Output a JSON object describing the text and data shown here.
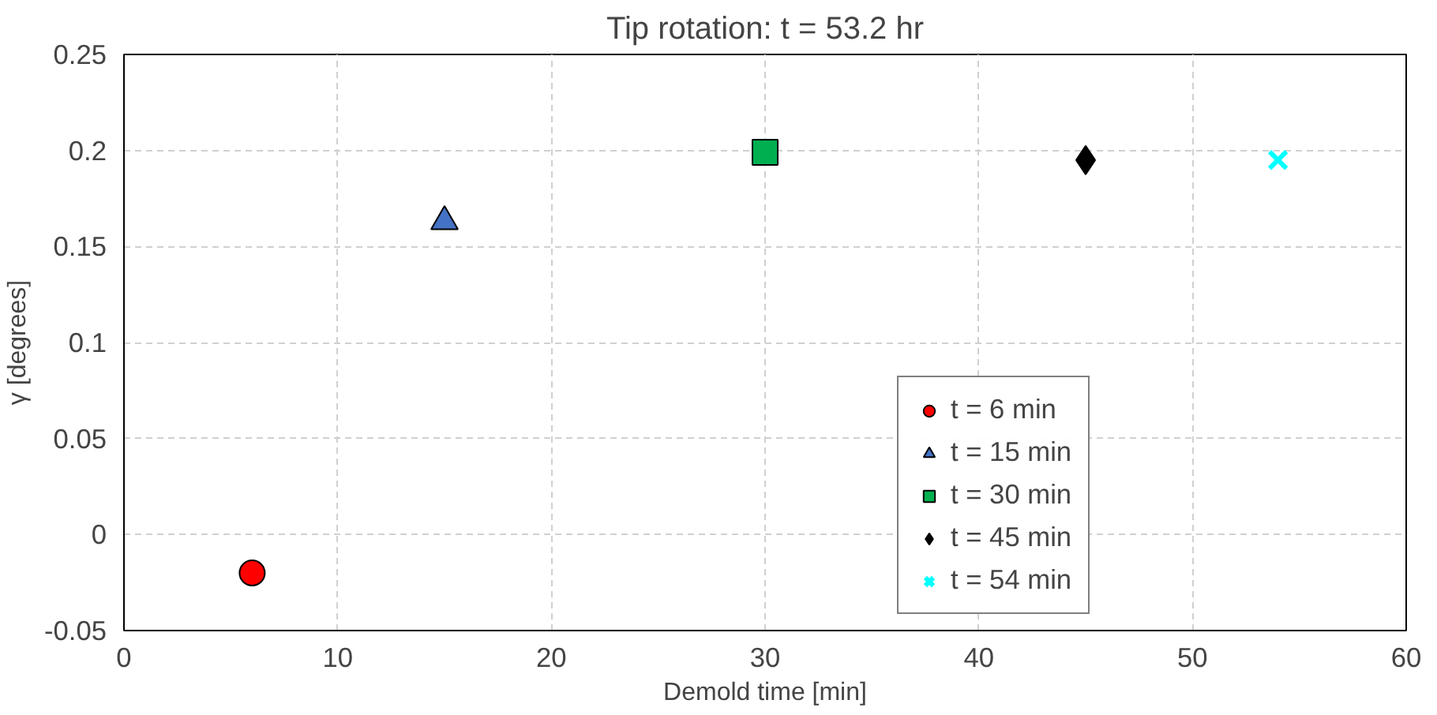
{
  "chart_data": {
    "type": "scatter",
    "title": "Tip rotation: t = 53.2 hr",
    "xlabel": "Demold time [min]",
    "ylabel": "γ [degrees]",
    "xlim": [
      0,
      60
    ],
    "xticks": [
      0,
      10,
      20,
      30,
      40,
      50,
      60
    ],
    "ylim": [
      -0.05,
      0.25
    ],
    "yticks": [
      -0.05,
      0,
      0.05,
      0.1,
      0.15,
      0.2,
      0.25
    ],
    "grid": true,
    "legend": "right",
    "series": [
      {
        "name": "t = 6 min",
        "color": "#ff0000",
        "marker": "circle",
        "x": [
          6
        ],
        "values": [
          -0.02
        ]
      },
      {
        "name": "t = 15 min",
        "color": "#4472c4",
        "marker": "triangle",
        "x": [
          15
        ],
        "values": [
          0.163
        ]
      },
      {
        "name": "t = 30 min",
        "color": "#00b050",
        "marker": "square",
        "x": [
          30
        ],
        "values": [
          0.199
        ]
      },
      {
        "name": "t = 45 min",
        "color": "#000000",
        "marker": "diamond",
        "x": [
          45
        ],
        "values": [
          0.195
        ]
      },
      {
        "name": "t = 54 min",
        "color": "#00ffff",
        "marker": "cross",
        "x": [
          54
        ],
        "values": [
          0.195
        ]
      }
    ]
  }
}
